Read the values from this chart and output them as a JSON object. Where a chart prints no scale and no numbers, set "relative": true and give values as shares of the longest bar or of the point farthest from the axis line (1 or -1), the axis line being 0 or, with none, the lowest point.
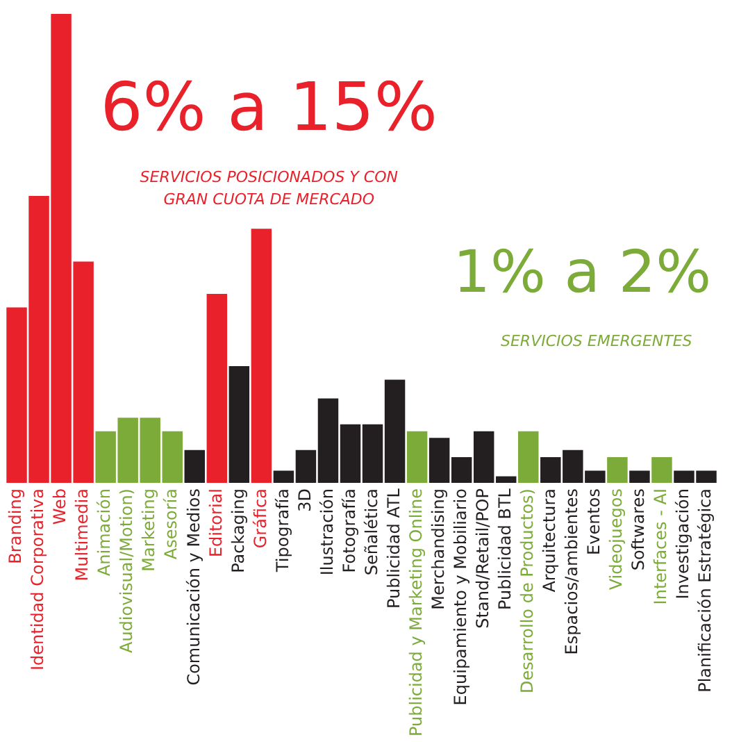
{
  "chart_data": {
    "type": "bar",
    "relative": true,
    "grid": false,
    "legend": false,
    "categories": [
      "Branding",
      "Identidad Corporativa",
      "Web",
      "Multimedia",
      "Animación",
      "Audiovisual/Motion)",
      "Marketing",
      "Asesoría",
      "Comunicación y Medios",
      "Editorial",
      "Packaging",
      "Gráfica",
      "Tipografía",
      "3D",
      "Ilustración",
      "Fotografía",
      "Señalética",
      "Publicidad ATL",
      "Publicidad y Marketing Online",
      "Merchandising",
      "Equipamiento y Mobiliario",
      "Stand/Retail/POP",
      "Publicidad BTL",
      "Desarrollo de Productos)",
      "Arquitectura",
      "Espacios/ambientes",
      "Eventos",
      "Videojuegos",
      "Softwares",
      "Interfaces - AI",
      "Investigación",
      "Planificación Estratégica"
    ],
    "values": [
      0.374,
      0.612,
      1,
      0.472,
      0.11,
      0.139,
      0.139,
      0.11,
      0.07,
      0.403,
      0.249,
      0.542,
      0.026,
      0.07,
      0.18,
      0.125,
      0.125,
      0.22,
      0.11,
      0.096,
      0.055,
      0.11,
      0.014,
      0.11,
      0.055,
      0.07,
      0.026,
      0.055,
      0.026,
      0.055,
      0.026,
      0.026
    ],
    "colors": [
      "#e8212b",
      "#e8212b",
      "#e8212b",
      "#e8212b",
      "#7cab3a",
      "#7cab3a",
      "#7cab3a",
      "#7cab3a",
      "#231f20",
      "#e8212b",
      "#231f20",
      "#e8212b",
      "#231f20",
      "#231f20",
      "#231f20",
      "#231f20",
      "#231f20",
      "#231f20",
      "#7cab3a",
      "#231f20",
      "#231f20",
      "#231f20",
      "#231f20",
      "#7cab3a",
      "#231f20",
      "#231f20",
      "#231f20",
      "#7cab3a",
      "#231f20",
      "#7cab3a",
      "#231f20",
      "#231f20"
    ],
    "annotations": [
      "6% a 15%",
      "SERVICIOS POSICIONADOS Y CON GRAN CUOTA DE MERCADO",
      "1% a 2%",
      "SERVICIOS EMERGENTES"
    ]
  }
}
